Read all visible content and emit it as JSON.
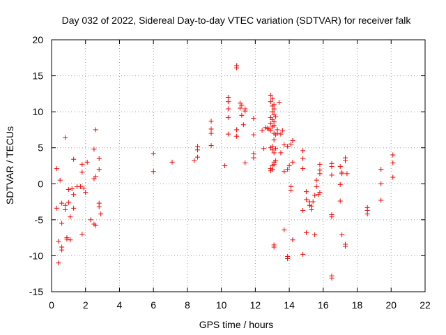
{
  "chart_data": {
    "type": "scatter",
    "title": "Day 032 of 2022, Sidereal Day-to-day VTEC variation (SDTVAR) for receiver falk",
    "xlabel": "GPS time / hours",
    "ylabel": "SDTVAR / TECUs",
    "xlim": [
      0,
      22
    ],
    "ylim": [
      -15,
      20
    ],
    "xticks": [
      "0",
      "2",
      "4",
      "6",
      "8",
      "10",
      "12",
      "14",
      "16",
      "18",
      "20",
      "22"
    ],
    "yticks": [
      "-15",
      "-10",
      "-5",
      "0",
      "5",
      "10",
      "15",
      "20"
    ],
    "grid": true,
    "marker": "+",
    "series": [
      {
        "name": "SDTVAR",
        "color": "#ff0000",
        "points": [
          [
            0.3,
            2.1
          ],
          [
            0.3,
            -3.4
          ],
          [
            0.4,
            -8.0
          ],
          [
            0.4,
            -11.0
          ],
          [
            0.5,
            0.5
          ],
          [
            0.6,
            -2.7
          ],
          [
            0.6,
            -5.5
          ],
          [
            0.6,
            -8.8
          ],
          [
            0.6,
            -9.2
          ],
          [
            0.8,
            6.4
          ],
          [
            0.8,
            -3.0
          ],
          [
            0.8,
            -3.6
          ],
          [
            0.9,
            -7.5
          ],
          [
            0.9,
            -7.7
          ],
          [
            1.0,
            -2.6
          ],
          [
            1.0,
            -0.8
          ],
          [
            1.1,
            -4.6
          ],
          [
            1.1,
            -7.8
          ],
          [
            1.2,
            -0.7
          ],
          [
            1.3,
            3.4
          ],
          [
            1.3,
            -1.5
          ],
          [
            1.3,
            -3.4
          ],
          [
            1.5,
            -0.4
          ],
          [
            1.7,
            -0.4
          ],
          [
            1.8,
            1.6
          ],
          [
            1.8,
            2.7
          ],
          [
            1.8,
            -7.0
          ],
          [
            1.9,
            -0.6
          ],
          [
            2.0,
            -1.2
          ],
          [
            2.1,
            3.0
          ],
          [
            2.3,
            -5.0
          ],
          [
            2.5,
            -5.6
          ],
          [
            2.5,
            0.7
          ],
          [
            2.5,
            4.8
          ],
          [
            2.6,
            7.5
          ],
          [
            2.6,
            1.0
          ],
          [
            2.6,
            -5.8
          ],
          [
            2.8,
            3.5
          ],
          [
            2.8,
            2.0
          ],
          [
            2.8,
            -2.7
          ],
          [
            2.8,
            -3.2
          ],
          [
            2.9,
            -4.2
          ],
          [
            6.0,
            4.2
          ],
          [
            6.0,
            1.7
          ],
          [
            7.1,
            3.0
          ],
          [
            8.4,
            3.2
          ],
          [
            8.6,
            5.2
          ],
          [
            8.6,
            4.7
          ],
          [
            8.6,
            3.7
          ],
          [
            9.4,
            8.7
          ],
          [
            9.4,
            7.6
          ],
          [
            9.4,
            7.0
          ],
          [
            9.4,
            5.3
          ],
          [
            10.2,
            2.5
          ],
          [
            10.4,
            12.0
          ],
          [
            10.4,
            11.4
          ],
          [
            10.4,
            10.4
          ],
          [
            10.4,
            9.2
          ],
          [
            10.4,
            6.9
          ],
          [
            10.9,
            16.4
          ],
          [
            10.9,
            16.1
          ],
          [
            10.9,
            7.5
          ],
          [
            10.9,
            6.6
          ],
          [
            11.1,
            11.2
          ],
          [
            11.1,
            10.5
          ],
          [
            11.2,
            10.9
          ],
          [
            11.2,
            9.5
          ],
          [
            11.3,
            8.2
          ],
          [
            11.4,
            10.4
          ],
          [
            11.4,
            10.1
          ],
          [
            11.4,
            2.9
          ],
          [
            11.9,
            9.1
          ],
          [
            11.9,
            6.8
          ],
          [
            11.9,
            4.2
          ],
          [
            11.9,
            3.6
          ],
          [
            12.4,
            7.4
          ],
          [
            12.5,
            4.9
          ],
          [
            12.6,
            7.8
          ],
          [
            12.7,
            7.7
          ],
          [
            12.8,
            7.6
          ],
          [
            12.9,
            12.3
          ],
          [
            12.9,
            11.4
          ],
          [
            12.9,
            9.2
          ],
          [
            12.9,
            8.4
          ],
          [
            12.9,
            7.4
          ],
          [
            12.9,
            5.0
          ],
          [
            12.9,
            2.1
          ],
          [
            12.9,
            1.8
          ],
          [
            13.0,
            11.8
          ],
          [
            13.0,
            10.8
          ],
          [
            13.0,
            10.0
          ],
          [
            13.0,
            8.9
          ],
          [
            13.0,
            7.9
          ],
          [
            13.0,
            5.2
          ],
          [
            13.0,
            4.7
          ],
          [
            13.0,
            2.5
          ],
          [
            13.0,
            2.0
          ],
          [
            13.1,
            11.0
          ],
          [
            13.1,
            10.4
          ],
          [
            13.1,
            9.6
          ],
          [
            13.1,
            8.6
          ],
          [
            13.1,
            8.1
          ],
          [
            13.1,
            7.0
          ],
          [
            13.1,
            6.1
          ],
          [
            13.1,
            4.3
          ],
          [
            13.1,
            3.0
          ],
          [
            13.1,
            2.7
          ],
          [
            13.1,
            -8.5
          ],
          [
            13.1,
            -8.8
          ],
          [
            13.2,
            9.3
          ],
          [
            13.2,
            6.8
          ],
          [
            13.2,
            4.9
          ],
          [
            13.2,
            3.2
          ],
          [
            13.3,
            7.5
          ],
          [
            13.3,
            7.0
          ],
          [
            13.4,
            11.3
          ],
          [
            13.5,
            6.9
          ],
          [
            13.5,
            4.3
          ],
          [
            13.6,
            7.4
          ],
          [
            13.7,
            5.4
          ],
          [
            13.7,
            1.7
          ],
          [
            13.7,
            -6.4
          ],
          [
            13.9,
            2.0
          ],
          [
            13.9,
            5.2
          ],
          [
            13.9,
            -10.1
          ],
          [
            13.9,
            -10.4
          ],
          [
            14.0,
            2.5
          ],
          [
            14.1,
            5.5
          ],
          [
            14.1,
            -0.4
          ],
          [
            14.1,
            -0.9
          ],
          [
            14.2,
            6.0
          ],
          [
            14.2,
            3.0
          ],
          [
            14.2,
            -7.8
          ],
          [
            14.8,
            4.6
          ],
          [
            14.8,
            2.1
          ],
          [
            14.8,
            3.5
          ],
          [
            14.8,
            -3.7
          ],
          [
            14.8,
            -9.8
          ],
          [
            15.0,
            -1.1
          ],
          [
            15.0,
            -2.2
          ],
          [
            15.0,
            -6.8
          ],
          [
            15.2,
            -2.5
          ],
          [
            15.2,
            -3.0
          ],
          [
            15.3,
            -3.1
          ],
          [
            15.3,
            -3.6
          ],
          [
            15.4,
            -2.5
          ],
          [
            15.5,
            -1.6
          ],
          [
            15.5,
            -7.1
          ],
          [
            15.6,
            -0.4
          ],
          [
            15.6,
            0.5
          ],
          [
            15.7,
            -1.5
          ],
          [
            15.8,
            2.7
          ],
          [
            15.8,
            1.9
          ],
          [
            15.8,
            1.4
          ],
          [
            15.8,
            -1.2
          ],
          [
            16.5,
            2.8
          ],
          [
            16.5,
            2.4
          ],
          [
            16.5,
            1.2
          ],
          [
            16.5,
            -4.3
          ],
          [
            16.5,
            -4.6
          ],
          [
            16.5,
            -12.8
          ],
          [
            16.5,
            -13.1
          ],
          [
            17.0,
            2.4
          ],
          [
            17.0,
            -0.1
          ],
          [
            17.0,
            -2.4
          ],
          [
            17.1,
            1.6
          ],
          [
            17.1,
            1.4
          ],
          [
            17.1,
            -7.1
          ],
          [
            17.3,
            3.6
          ],
          [
            17.3,
            3.2
          ],
          [
            17.3,
            -8.4
          ],
          [
            17.3,
            -8.7
          ],
          [
            17.4,
            1.4
          ],
          [
            18.6,
            -3.3
          ],
          [
            18.6,
            -3.7
          ],
          [
            18.6,
            -4.2
          ],
          [
            19.4,
            2.0
          ],
          [
            19.4,
            0.0
          ],
          [
            19.4,
            -2.3
          ],
          [
            20.1,
            4.0
          ],
          [
            20.1,
            2.9
          ],
          [
            20.1,
            0.9
          ]
        ]
      }
    ]
  }
}
